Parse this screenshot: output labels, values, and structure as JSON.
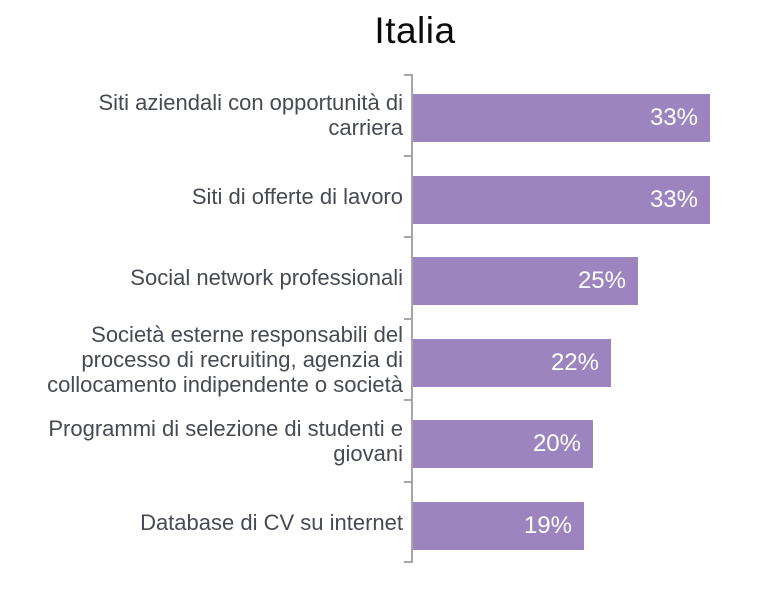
{
  "chart_data": {
    "type": "bar",
    "orientation": "horizontal",
    "title": "Italia",
    "unit": "%",
    "categories": [
      "Siti aziendali con opportunità di\ncarriera",
      "Siti di offerte di lavoro",
      "Social network professionali",
      "Società esterne responsabili del\nprocesso di recruiting, agenzia di\ncollocamento indipendente o società",
      "Programmi di selezione di studenti e\ngiovani",
      "Database di CV su internet"
    ],
    "values": [
      33,
      33,
      25,
      22,
      20,
      19
    ],
    "value_labels": [
      "33%",
      "33%",
      "25%",
      "22%",
      "20%",
      "19%"
    ],
    "xlabel": "",
    "ylabel": "",
    "xlim": [
      0,
      36
    ],
    "grid": false,
    "legend": false,
    "axis_ticks_count": 7,
    "colors": {
      "bar": "#9c84bf",
      "axis": "#a6a6a6",
      "label": "#474a52",
      "value_text": "#ffffff",
      "title": "#0a0a0a"
    }
  }
}
